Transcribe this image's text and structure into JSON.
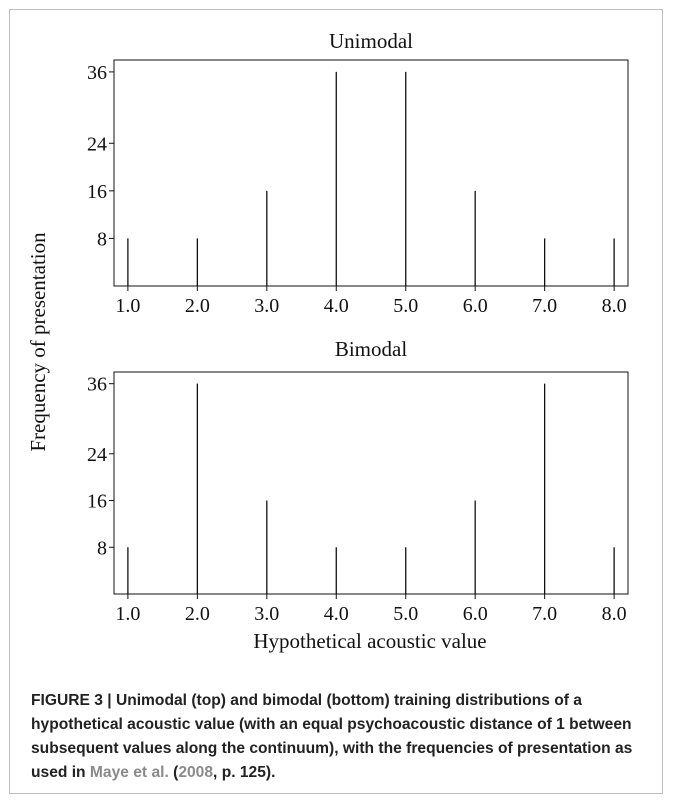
{
  "chart_data": [
    {
      "type": "bar",
      "title": "Unimodal",
      "categories": [
        "1.0",
        "2.0",
        "3.0",
        "4.0",
        "5.0",
        "6.0",
        "7.0",
        "8.0"
      ],
      "values": [
        8,
        8,
        16,
        36,
        36,
        16,
        8,
        8
      ],
      "yticks": [
        8,
        16,
        24,
        36
      ],
      "ylim": [
        0,
        38
      ],
      "xlim": [
        0.8,
        8.2
      ],
      "grid": false
    },
    {
      "type": "bar",
      "title": "Bimodal",
      "categories": [
        "1.0",
        "2.0",
        "3.0",
        "4.0",
        "5.0",
        "6.0",
        "7.0",
        "8.0"
      ],
      "values": [
        8,
        36,
        16,
        8,
        8,
        16,
        36,
        8
      ],
      "yticks": [
        8,
        16,
        24,
        36
      ],
      "ylim": [
        0,
        38
      ],
      "xlim": [
        0.8,
        8.2
      ],
      "grid": false
    }
  ],
  "shared_ylabel": "Frequency of presentation",
  "shared_xlabel": "Hypothetical acoustic value",
  "caption": {
    "prefix": "FIGURE 3 | Unimodal (top) and bimodal (bottom) training distributions of a hypothetical acoustic value (with an equal psychoacoustic distance of 1 between subsequent values along the continuum), with the frequencies of presentation as used in ",
    "cite_authors": "Maye et al.",
    "open_paren": " (",
    "cite_year": "2008",
    "suffix": ", p. 125)."
  }
}
